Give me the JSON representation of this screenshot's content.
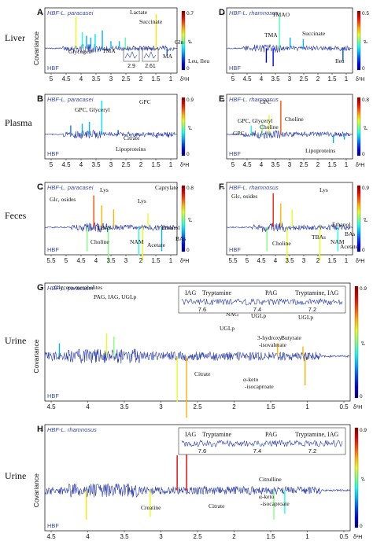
{
  "chart_data": [
    {
      "type": "line",
      "id": "A",
      "panel_letter": "A",
      "row_label": "Liver",
      "legend_top": "HBF-L. paracasei",
      "legend_bottom": "HBF",
      "ylabel": "Covariance",
      "colorbar_label": "r²",
      "colorbar_ticks": [
        "0.7",
        "0"
      ],
      "x_ticks": [
        "5",
        "4.5",
        "4",
        "3.5",
        "3",
        "2.5",
        "2",
        "1.5",
        "1"
      ],
      "x_unit": "δ¹H",
      "xlim": [
        5.2,
        0.6
      ],
      "y_plus": "+",
      "annotations": [
        "Lactate",
        "Succinate",
        "Glycogen",
        "TMA",
        "Gln",
        "Leu, Ileu",
        "MA"
      ],
      "inset_ticks": [
        "2.9",
        "2.61"
      ],
      "peaks": [
        {
          "x": 4.12,
          "y": 0.9,
          "r": 0.6
        },
        {
          "x": 3.9,
          "y": 0.45,
          "r": 0.4
        },
        {
          "x": 3.75,
          "y": 0.35,
          "r": 0.3
        },
        {
          "x": 3.6,
          "y": 0.3,
          "r": 0.3
        },
        {
          "x": 3.45,
          "y": 0.4,
          "r": 0.35
        },
        {
          "x": 3.2,
          "y": 0.5,
          "r": 0.3
        },
        {
          "x": 2.9,
          "y": 0.2,
          "r": 0.3
        },
        {
          "x": 2.61,
          "y": 0.2,
          "r": 0.3
        },
        {
          "x": 2.4,
          "y": 0.3,
          "r": 0.45
        },
        {
          "x": 1.33,
          "y": 0.95,
          "r": 0.65
        },
        {
          "x": 0.95,
          "y": -0.2,
          "r": 0.2
        }
      ]
    },
    {
      "type": "line",
      "id": "D",
      "panel_letter": "D",
      "legend_top": "HBF-L. rhamnosus",
      "legend_bottom": "HBF",
      "colorbar_label": "r²",
      "colorbar_ticks": [
        "0.5",
        "0"
      ],
      "x_ticks": [
        "5",
        "4.5",
        "4",
        "3.5",
        "3",
        "2.5",
        "2",
        "1.5",
        "1"
      ],
      "x_unit": "δ¹H",
      "xlim": [
        5.2,
        0.6
      ],
      "y_plus": "+",
      "annotations": [
        "TMAO",
        "TMA",
        "Succinate",
        "Ileu"
      ],
      "peaks": [
        {
          "x": 3.27,
          "y": 0.9,
          "r": 0.45
        },
        {
          "x": 2.88,
          "y": 0.3,
          "r": 0.3
        },
        {
          "x": 2.4,
          "y": 0.25,
          "r": 0.3
        },
        {
          "x": 3.75,
          "y": -0.4,
          "r": 0.1
        },
        {
          "x": 3.5,
          "y": -0.5,
          "r": 0.1
        },
        {
          "x": 0.95,
          "y": -0.35,
          "r": 0.2
        }
      ]
    },
    {
      "type": "line",
      "id": "B",
      "panel_letter": "B",
      "row_label": "Plasma",
      "legend_top": "HBF-L. paracasei",
      "legend_bottom": "HBF",
      "colorbar_label": "r²",
      "colorbar_ticks": [
        "0.9",
        "0"
      ],
      "x_ticks": [
        "5",
        "4.5",
        "4",
        "3.5",
        "3",
        "2.5",
        "2",
        "1.5",
        "1"
      ],
      "x_unit": "δ¹H",
      "xlim": [
        5.2,
        0.6
      ],
      "y_plus": "+",
      "annotations": [
        "GPC, Glyceryl",
        "GPC",
        "Citrate",
        "Lipoproteins"
      ],
      "peaks": [
        {
          "x": 3.22,
          "y": 0.95,
          "r": 0.35
        },
        {
          "x": 3.65,
          "y": 0.35,
          "r": 0.3
        },
        {
          "x": 3.9,
          "y": 0.3,
          "r": 0.3
        },
        {
          "x": 4.3,
          "y": 0.25,
          "r": 0.25
        },
        {
          "x": 2.65,
          "y": 0.12,
          "r": 0.2
        },
        {
          "x": 1.3,
          "y": -0.1,
          "r": 0.1
        },
        {
          "x": 0.9,
          "y": -0.08,
          "r": 0.1
        }
      ]
    },
    {
      "type": "line",
      "id": "E",
      "panel_letter": "E",
      "legend_top": "HBF-L. rhamnosus",
      "legend_bottom": "HBF",
      "colorbar_label": "r²",
      "colorbar_ticks": [
        "0.8",
        "0"
      ],
      "x_ticks": [
        "5",
        "4.5",
        "4",
        "3.5",
        "3",
        "2.5",
        "2",
        "1.5",
        "1"
      ],
      "x_unit": "δ¹H",
      "xlim": [
        5.2,
        0.6
      ],
      "y_plus": "+",
      "annotations": [
        "GPC",
        "GPC, Glyceryl",
        "Choline",
        "Choline",
        "GPC",
        "Lipoproteins"
      ],
      "peaks": [
        {
          "x": 3.22,
          "y": 0.95,
          "r": 0.8
        },
        {
          "x": 3.65,
          "y": 0.55,
          "r": 0.6
        },
        {
          "x": 3.9,
          "y": 0.35,
          "r": 0.5
        },
        {
          "x": 4.3,
          "y": 0.25,
          "r": 0.4
        },
        {
          "x": 1.3,
          "y": -0.25,
          "r": 0.3
        },
        {
          "x": 0.9,
          "y": -0.15,
          "r": 0.3
        }
      ]
    },
    {
      "type": "line",
      "id": "C",
      "panel_letter": "C",
      "row_label": "Feces",
      "legend_top": "HBF-L. paracasei",
      "legend_bottom": "HBF",
      "colorbar_label": "r²",
      "colorbar_ticks": [
        "0.8",
        "0"
      ],
      "x_ticks": [
        "5.5",
        "5",
        "4.5",
        "4",
        "3.5",
        "3",
        "2",
        "1.5",
        "1"
      ],
      "x_unit": "δ¹H",
      "xlim": [
        5.6,
        0.6
      ],
      "y_plus": "+",
      "annotations": [
        "Glc, osides",
        "Lys",
        "Caprylate",
        "Lys",
        "TBAs",
        "Choline",
        "NAM",
        "Ethanol",
        "Acetate",
        "BAs"
      ],
      "peaks": [
        {
          "x": 3.75,
          "y": 0.8,
          "r": 0.8
        },
        {
          "x": 3.45,
          "y": 0.55,
          "r": 0.7
        },
        {
          "x": 3.0,
          "y": 0.45,
          "r": 0.7
        },
        {
          "x": 1.7,
          "y": 0.35,
          "r": 0.6
        },
        {
          "x": 3.2,
          "y": -0.9,
          "r": 0.5
        },
        {
          "x": 4.0,
          "y": -0.6,
          "r": 0.5
        },
        {
          "x": 2.05,
          "y": -0.7,
          "r": 0.4
        },
        {
          "x": 1.9,
          "y": -0.85,
          "r": 0.6
        },
        {
          "x": 1.18,
          "y": -0.6,
          "r": 0.3
        }
      ]
    },
    {
      "type": "line",
      "id": "F",
      "panel_letter": "F",
      "legend_top": "HBF-L. rhamnosus",
      "legend_bottom": "HBF",
      "colorbar_label": "r²",
      "colorbar_ticks": [
        "0.9",
        "0"
      ],
      "x_ticks": [
        "5.5",
        "5",
        "4.5",
        "4",
        "3.5",
        "3",
        "2",
        "1.5",
        "1"
      ],
      "x_unit": "δ¹H",
      "xlim": [
        5.6,
        0.6
      ],
      "y_plus": "+",
      "annotations": [
        "Glc, osides",
        "Lys",
        "Choline",
        "TBAs",
        "NAM",
        "Acetate",
        "Ethanol",
        "BAs"
      ],
      "peaks": [
        {
          "x": 3.75,
          "y": 0.85,
          "r": 0.85
        },
        {
          "x": 3.45,
          "y": 0.6,
          "r": 0.7
        },
        {
          "x": 3.0,
          "y": 0.45,
          "r": 0.6
        },
        {
          "x": 3.2,
          "y": -0.9,
          "r": 0.6
        },
        {
          "x": 4.0,
          "y": -0.6,
          "r": 0.5
        },
        {
          "x": 1.9,
          "y": -0.85,
          "r": 0.6
        },
        {
          "x": 1.18,
          "y": -0.6,
          "r": 0.4
        }
      ]
    },
    {
      "type": "line",
      "id": "G",
      "panel_letter": "G",
      "row_label": "Urine",
      "legend_top": "HBF-L. paracasei",
      "legend_bottom": "HBF",
      "ylabel": "Covariance",
      "colorbar_label": "r²",
      "colorbar_ticks": [
        "0.9",
        "0"
      ],
      "x_ticks": [
        "4.5",
        "4",
        "3.5",
        "3",
        "2.5",
        "2",
        "1.5",
        "1",
        "0.5"
      ],
      "x_unit": "δ¹H",
      "xlim": [
        4.5,
        0.3
      ],
      "y_plus": "+",
      "annotations": [
        "Glycero-metabolites",
        "PAG, IAG, UGLp",
        "UGLp",
        "NAG",
        "UGLp",
        "UGLp",
        "3-hydroxy -isovalerate",
        "Butyrate",
        "Citrate",
        "α-keto -isocaproate"
      ],
      "inset_labels": [
        "IAG",
        "Tryptamine",
        "PAG",
        "Tryptamine, IAG"
      ],
      "inset_ticks": [
        "7.6",
        "7.4",
        "7.2"
      ],
      "peaks": [
        {
          "x": 4.3,
          "y": 0.2,
          "r": 0.3
        },
        {
          "x": 3.65,
          "y": 0.35,
          "r": 0.6
        },
        {
          "x": 3.55,
          "y": 0.3,
          "r": 0.5
        },
        {
          "x": 2.68,
          "y": -0.7,
          "r": 0.6
        },
        {
          "x": 2.55,
          "y": -0.95,
          "r": 0.7
        },
        {
          "x": 1.3,
          "y": 0.2,
          "r": 0.7
        },
        {
          "x": 0.92,
          "y": -0.45,
          "r": 0.7
        },
        {
          "x": 0.95,
          "y": 0.15,
          "r": 0.7
        }
      ]
    },
    {
      "type": "line",
      "id": "H",
      "panel_letter": "H",
      "row_label": "Urine",
      "legend_top": "HBF-L. rhamnosus",
      "legend_bottom": "HBF",
      "ylabel": "Covariance",
      "colorbar_label": "r²",
      "colorbar_ticks": [
        "0.9",
        "0"
      ],
      "x_ticks": [
        "4.5",
        "4",
        "3.5",
        "3",
        "2.5",
        "2",
        "1.5",
        "1",
        "0.5"
      ],
      "x_unit": "δ¹H",
      "xlim": [
        4.5,
        0.3
      ],
      "y_plus": "+",
      "annotations": [
        "Creatine",
        "Citrate",
        "Citrulline",
        "α-keto -isocaproate"
      ],
      "inset_labels": [
        "IAG",
        "Tryptamine",
        "PAG",
        "Tryptamine, IAG"
      ],
      "inset_ticks": [
        "7.6",
        "7.4",
        "7.2"
      ],
      "peaks": [
        {
          "x": 2.55,
          "y": 0.95,
          "r": 0.9
        },
        {
          "x": 2.68,
          "y": 0.6,
          "r": 0.9
        },
        {
          "x": 3.05,
          "y": -0.45,
          "r": 0.6
        },
        {
          "x": 3.93,
          "y": -0.5,
          "r": 0.65
        },
        {
          "x": 1.35,
          "y": -0.5,
          "r": 0.5
        },
        {
          "x": 1.2,
          "y": -0.4,
          "r": 0.4
        }
      ]
    }
  ]
}
